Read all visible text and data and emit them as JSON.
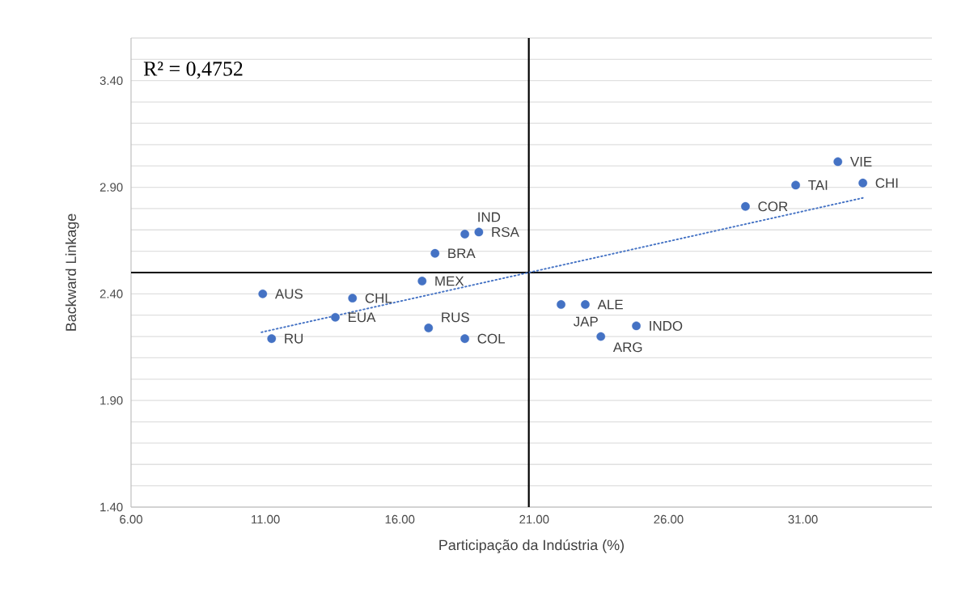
{
  "chart_data": {
    "type": "scatter",
    "xlabel": "Participação da Indústria (%)",
    "ylabel": "Backward Linkage",
    "x": [
      10.9,
      11.23,
      13.6,
      14.24,
      16.83,
      17.07,
      17.31,
      18.42,
      18.94,
      18.42,
      22.0,
      22.9,
      23.48,
      24.8,
      28.86,
      30.73,
      32.3,
      33.23
    ],
    "series": [
      {
        "color": "#4472c4",
        "marker": "circle",
        "values": [
          2.4,
          2.19,
          2.29,
          2.38,
          2.46,
          2.24,
          2.59,
          2.68,
          2.69,
          2.19,
          2.35,
          2.35,
          2.2,
          2.25,
          2.81,
          2.91,
          3.02,
          2.92
        ]
      },
      {
        "type": "line",
        "color": "#4472c4",
        "line_style": "dotted",
        "marker": "none",
        "x": [
          10.85,
          33.23
        ],
        "values": [
          2.22,
          2.85
        ]
      }
    ],
    "xlim": [
      6,
      35.8
    ],
    "ylim": [
      1.4,
      3.6
    ],
    "xticks": [
      {
        "value": 6,
        "label": "6.00"
      },
      {
        "value": 11,
        "label": "11.00"
      },
      {
        "value": 16,
        "label": "16.00"
      },
      {
        "value": 21,
        "label": "21.00"
      },
      {
        "value": 26,
        "label": "26.00"
      },
      {
        "value": 31,
        "label": "31.00"
      }
    ],
    "yticks": [
      {
        "value": 1.4,
        "label": "1.40"
      },
      {
        "value": 1.5,
        "label": null
      },
      {
        "value": 1.6,
        "label": null
      },
      {
        "value": 1.7,
        "label": null
      },
      {
        "value": 1.8,
        "label": null
      },
      {
        "value": 1.9,
        "label": "1.90"
      },
      {
        "value": 2.0,
        "label": null
      },
      {
        "value": 2.1,
        "label": null
      },
      {
        "value": 2.2,
        "label": null
      },
      {
        "value": 2.3,
        "label": null
      },
      {
        "value": 2.4,
        "label": "2.40"
      },
      {
        "value": 2.5,
        "label": null
      },
      {
        "value": 2.6,
        "label": null
      },
      {
        "value": 2.7,
        "label": null
      },
      {
        "value": 2.8,
        "label": null
      },
      {
        "value": 2.9,
        "label": "2.90"
      },
      {
        "value": 3.0,
        "label": null
      },
      {
        "value": 3.1,
        "label": null
      },
      {
        "value": 3.2,
        "label": null
      },
      {
        "value": 3.3,
        "label": null
      },
      {
        "value": 3.4,
        "label": "3.40"
      },
      {
        "value": 3.5,
        "label": null
      },
      {
        "value": 3.6,
        "label": null
      }
    ],
    "grid": "y",
    "ref_lines": [
      {
        "axis": "x",
        "value": 20.8,
        "color": "#000000"
      },
      {
        "axis": "y",
        "value": 2.5,
        "color": "#000000"
      }
    ],
    "annotations": [
      "R² = 0,4752",
      {
        "text": "AUS",
        "x": 10.9,
        "y": 2.4
      },
      {
        "text": "RU",
        "x": 11.23,
        "y": 2.19
      },
      {
        "text": "EUA",
        "x": 13.6,
        "y": 2.29
      },
      {
        "text": "CHL",
        "x": 14.24,
        "y": 2.38
      },
      {
        "text": "MEX",
        "x": 16.83,
        "y": 2.46
      },
      {
        "text": "RUS",
        "x": 17.07,
        "y": 2.24
      },
      {
        "text": "BRA",
        "x": 17.31,
        "y": 2.59
      },
      {
        "text": "IND",
        "x": 18.42,
        "y": 2.68
      },
      {
        "text": "RSA",
        "x": 18.94,
        "y": 2.69
      },
      {
        "text": "COL",
        "x": 18.42,
        "y": 2.19
      },
      {
        "text": "JAP",
        "x": 22.0,
        "y": 2.35
      },
      {
        "text": "ALE",
        "x": 22.9,
        "y": 2.35
      },
      {
        "text": "ARG",
        "x": 23.48,
        "y": 2.2
      },
      {
        "text": "INDO",
        "x": 24.8,
        "y": 2.25
      },
      {
        "text": "COR",
        "x": 28.86,
        "y": 2.81
      },
      {
        "text": "TAI",
        "x": 30.73,
        "y": 2.91
      },
      {
        "text": "VIE",
        "x": 32.3,
        "y": 3.02
      },
      {
        "text": "CHI",
        "x": 33.23,
        "y": 2.92
      }
    ]
  }
}
